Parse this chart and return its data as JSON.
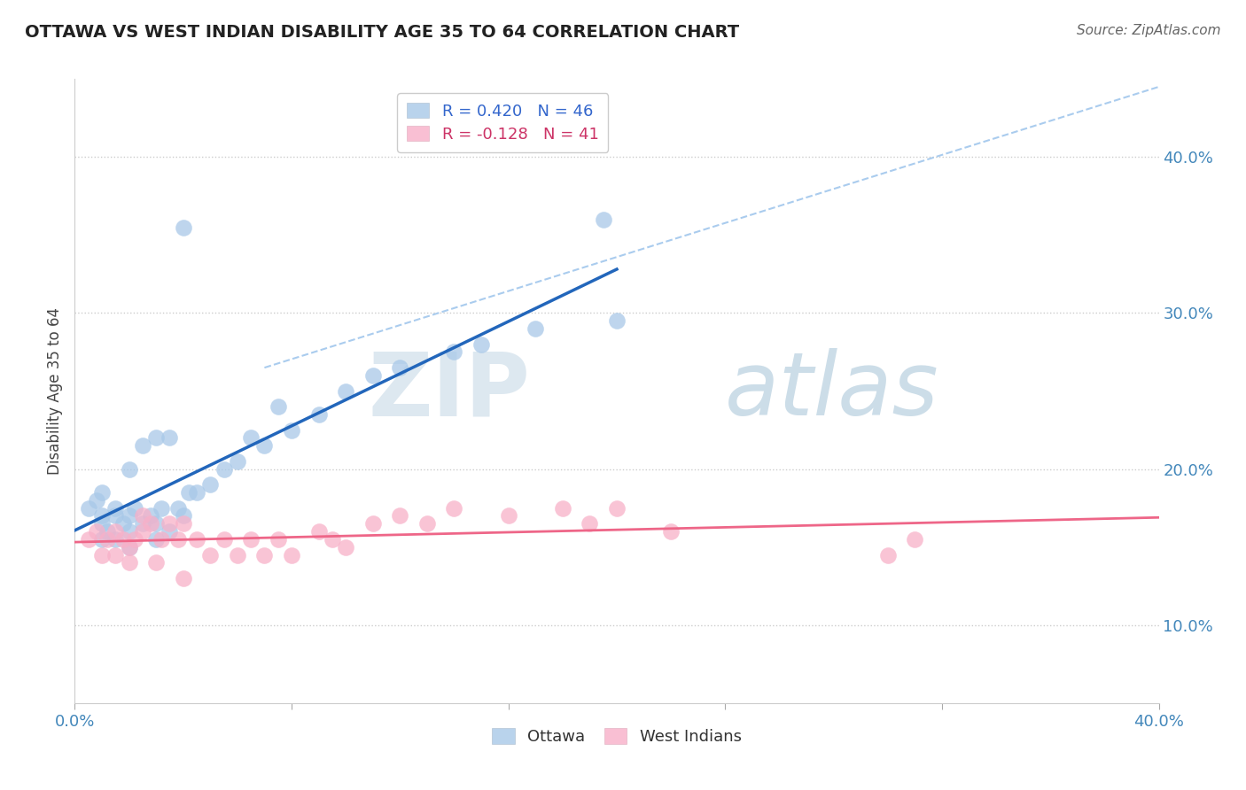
{
  "title": "OTTAWA VS WEST INDIAN DISABILITY AGE 35 TO 64 CORRELATION CHART",
  "source": "Source: ZipAtlas.com",
  "ylabel": "Disability Age 35 to 64",
  "xlim": [
    0.0,
    0.4
  ],
  "ylim": [
    0.05,
    0.45
  ],
  "ottawa_R": 0.42,
  "ottawa_N": 46,
  "westindian_R": -0.128,
  "westindian_N": 41,
  "ottawa_color": "#a8c8e8",
  "westindian_color": "#f8b0c8",
  "ottawa_line_color": "#2266bb",
  "westindian_line_color": "#ee6688",
  "dashed_line_color": "#aaccee",
  "background_color": "#ffffff",
  "grid_color": "#cccccc",
  "ottawa_x": [
    0.005,
    0.008,
    0.01,
    0.01,
    0.01,
    0.01,
    0.012,
    0.015,
    0.015,
    0.015,
    0.018,
    0.02,
    0.02,
    0.02,
    0.02,
    0.022,
    0.025,
    0.025,
    0.028,
    0.03,
    0.03,
    0.03,
    0.032,
    0.035,
    0.035,
    0.038,
    0.04,
    0.04,
    0.042,
    0.045,
    0.05,
    0.055,
    0.06,
    0.065,
    0.07,
    0.075,
    0.08,
    0.09,
    0.1,
    0.11,
    0.12,
    0.14,
    0.15,
    0.17,
    0.195,
    0.2
  ],
  "ottawa_y": [
    0.175,
    0.18,
    0.155,
    0.165,
    0.17,
    0.185,
    0.16,
    0.155,
    0.17,
    0.175,
    0.165,
    0.15,
    0.16,
    0.17,
    0.2,
    0.175,
    0.165,
    0.215,
    0.17,
    0.155,
    0.165,
    0.22,
    0.175,
    0.16,
    0.22,
    0.175,
    0.17,
    0.355,
    0.185,
    0.185,
    0.19,
    0.2,
    0.205,
    0.22,
    0.215,
    0.24,
    0.225,
    0.235,
    0.25,
    0.26,
    0.265,
    0.275,
    0.28,
    0.29,
    0.36,
    0.295
  ],
  "wi_x": [
    0.005,
    0.008,
    0.01,
    0.012,
    0.015,
    0.015,
    0.018,
    0.02,
    0.02,
    0.022,
    0.025,
    0.025,
    0.028,
    0.03,
    0.032,
    0.035,
    0.038,
    0.04,
    0.04,
    0.045,
    0.05,
    0.055,
    0.06,
    0.065,
    0.07,
    0.075,
    0.08,
    0.09,
    0.095,
    0.1,
    0.11,
    0.12,
    0.13,
    0.14,
    0.16,
    0.18,
    0.19,
    0.2,
    0.22,
    0.3,
    0.31
  ],
  "wi_y": [
    0.155,
    0.16,
    0.145,
    0.155,
    0.145,
    0.16,
    0.155,
    0.14,
    0.15,
    0.155,
    0.16,
    0.17,
    0.165,
    0.14,
    0.155,
    0.165,
    0.155,
    0.13,
    0.165,
    0.155,
    0.145,
    0.155,
    0.145,
    0.155,
    0.145,
    0.155,
    0.145,
    0.16,
    0.155,
    0.15,
    0.165,
    0.17,
    0.165,
    0.175,
    0.17,
    0.175,
    0.165,
    0.175,
    0.16,
    0.145,
    0.155
  ]
}
